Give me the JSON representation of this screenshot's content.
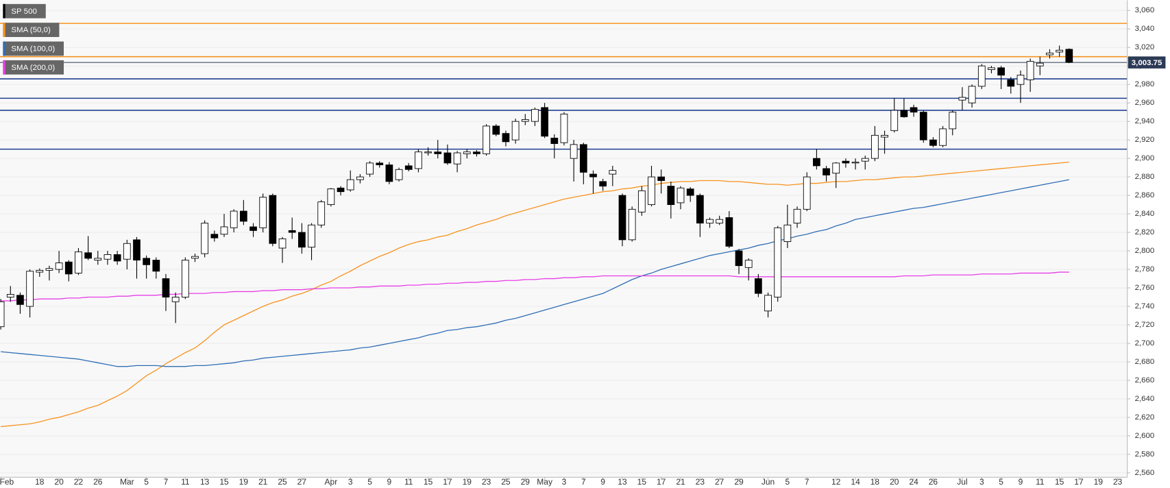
{
  "chart_data": {
    "type": "candlestick",
    "name": "SP 500",
    "categories": [
      "Feb",
      null,
      null,
      null,
      "18",
      null,
      "20",
      null,
      "22",
      null,
      "26",
      null,
      null,
      "Mar",
      null,
      "5",
      null,
      "7",
      null,
      "11",
      null,
      "13",
      null,
      "15",
      null,
      "19",
      null,
      "21",
      null,
      "25",
      null,
      "27",
      null,
      null,
      "Apr",
      null,
      "3",
      null,
      "5",
      null,
      "9",
      null,
      "11",
      null,
      "15",
      null,
      "17",
      null,
      "19",
      null,
      "23",
      null,
      "25",
      null,
      "29",
      null,
      "May",
      null,
      "3",
      null,
      "7",
      null,
      "9",
      null,
      "13",
      null,
      "15",
      null,
      "17",
      null,
      "21",
      null,
      "23",
      null,
      "27",
      null,
      "29",
      null,
      null,
      "Jun",
      null,
      "5",
      null,
      "7",
      null,
      null,
      "12",
      null,
      "14",
      null,
      "18",
      null,
      "20",
      null,
      "24",
      null,
      "26",
      null,
      null,
      "Jul",
      null,
      "3",
      null,
      "5",
      null,
      "9",
      null,
      "11",
      null,
      "15",
      null,
      "17",
      null,
      "19",
      null,
      "23"
    ],
    "open": [
      2718,
      2750,
      2752,
      2740,
      2777,
      2779,
      2780,
      2788,
      2776,
      2798,
      2790,
      2791,
      2796,
      2791,
      2812,
      2792,
      2790,
      2770,
      2745,
      2750,
      2792,
      2797,
      2818,
      2818,
      2825,
      2843,
      2826,
      2825,
      2860,
      2803,
      2822,
      2820,
      2804,
      2828,
      2850,
      2868,
      2866,
      2877,
      2883,
      2895,
      2893,
      2877,
      2892,
      2889,
      2906,
      2907,
      2906,
      2894,
      2905,
      2907,
      2905,
      2935,
      2927,
      2920,
      2940,
      2940,
      2955,
      2922,
      2917,
      2900,
      2915,
      2883,
      2875,
      2883,
      2860,
      2812,
      2842,
      2850,
      2880,
      2870,
      2852,
      2867,
      2860,
      2830,
      2830,
      2836,
      2800,
      2782,
      2770,
      2735,
      2750,
      2810,
      2830,
      2845,
      2900,
      2889,
      2884,
      2897,
      2895,
      2897,
      2900,
      2923,
      2930,
      2952,
      2955,
      2950,
      2920,
      2914,
      2932,
      2963,
      2960,
      2978,
      2996,
      2998,
      2985,
      2980,
      2985,
      3000,
      3012,
      3015,
      3018,
      null,
      null,
      null,
      null,
      null
    ],
    "high": [
      2748,
      2762,
      2755,
      2780,
      2781,
      2784,
      2800,
      2790,
      2803,
      2816,
      2800,
      2800,
      2800,
      2812,
      2815,
      2795,
      2793,
      2775,
      2755,
      2793,
      2797,
      2833,
      2822,
      2840,
      2845,
      2855,
      2830,
      2862,
      2862,
      2815,
      2836,
      2830,
      2830,
      2855,
      2868,
      2870,
      2887,
      2883,
      2897,
      2897,
      2896,
      2890,
      2895,
      2910,
      2912,
      2920,
      2915,
      2908,
      2910,
      2909,
      2937,
      2937,
      2930,
      2943,
      2948,
      2955,
      2960,
      2926,
      2950,
      2920,
      2917,
      2887,
      2878,
      2892,
      2862,
      2848,
      2870,
      2892,
      2888,
      2875,
      2870,
      2869,
      2862,
      2836,
      2838,
      2843,
      2802,
      2792,
      2775,
      2755,
      2827,
      2850,
      2848,
      2885,
      2910,
      2892,
      2896,
      2900,
      2900,
      2903,
      2935,
      2930,
      2965,
      2965,
      2958,
      2952,
      2923,
      2935,
      2952,
      2977,
      2980,
      3002,
      3000,
      3000,
      2988,
      2995,
      3008,
      3010,
      3018,
      3022,
      3019,
      null,
      null,
      null,
      null,
      null
    ],
    "low": [
      2715,
      2745,
      2732,
      2728,
      2772,
      2768,
      2776,
      2767,
      2774,
      2790,
      2785,
      2785,
      2785,
      2780,
      2770,
      2770,
      2770,
      2735,
      2722,
      2748,
      2788,
      2793,
      2810,
      2815,
      2820,
      2828,
      2815,
      2820,
      2805,
      2787,
      2813,
      2797,
      2790,
      2825,
      2848,
      2860,
      2864,
      2873,
      2880,
      2890,
      2872,
      2875,
      2886,
      2885,
      2903,
      2900,
      2893,
      2885,
      2900,
      2902,
      2903,
      2924,
      2913,
      2916,
      2936,
      2935,
      2922,
      2900,
      2914,
      2875,
      2872,
      2862,
      2865,
      2870,
      2805,
      2810,
      2838,
      2848,
      2862,
      2835,
      2845,
      2853,
      2815,
      2825,
      2828,
      2803,
      2775,
      2768,
      2750,
      2728,
      2745,
      2803,
      2825,
      2843,
      2888,
      2875,
      2868,
      2890,
      2888,
      2888,
      2897,
      2905,
      2928,
      2944,
      2945,
      2917,
      2912,
      2912,
      2925,
      2952,
      2955,
      2975,
      2992,
      2975,
      2970,
      2960,
      2972,
      2990,
      3008,
      3010,
      3003,
      null,
      null,
      null,
      null,
      null
    ],
    "close": [
      2745,
      2753,
      2742,
      2778,
      2779,
      2781,
      2787,
      2775,
      2799,
      2792,
      2792,
      2796,
      2789,
      2808,
      2790,
      2785,
      2778,
      2750,
      2750,
      2790,
      2794,
      2830,
      2814,
      2826,
      2843,
      2832,
      2822,
      2858,
      2808,
      2813,
      2820,
      2804,
      2828,
      2853,
      2867,
      2864,
      2877,
      2880,
      2895,
      2893,
      2875,
      2888,
      2888,
      2907,
      2907,
      2905,
      2895,
      2906,
      2907,
      2905,
      2935,
      2926,
      2918,
      2940,
      2942,
      2953,
      2924,
      2916,
      2948,
      2915,
      2885,
      2880,
      2870,
      2887,
      2812,
      2845,
      2865,
      2880,
      2876,
      2850,
      2868,
      2860,
      2830,
      2834,
      2834,
      2805,
      2784,
      2790,
      2754,
      2752,
      2825,
      2828,
      2845,
      2880,
      2892,
      2882,
      2895,
      2895,
      2896,
      2900,
      2925,
      2925,
      2952,
      2945,
      2950,
      2920,
      2914,
      2932,
      2950,
      2966,
      2978,
      3000,
      2998,
      2990,
      2978,
      2990,
      3005,
      3003,
      3014,
      3017,
      3003.75,
      null,
      null,
      null,
      null,
      null
    ],
    "series": [
      {
        "name": "SMA (50,0)",
        "color": "#f7931e",
        "values": [
          2610,
          2611,
          2612,
          2613,
          2615,
          2618,
          2620,
          2623,
          2626,
          2630,
          2633,
          2638,
          2643,
          2649,
          2657,
          2665,
          2671,
          2678,
          2684,
          2690,
          2695,
          2703,
          2712,
          2720,
          2725,
          2730,
          2735,
          2740,
          2744,
          2747,
          2751,
          2754,
          2758,
          2763,
          2767,
          2773,
          2778,
          2784,
          2789,
          2794,
          2798,
          2803,
          2807,
          2810,
          2812,
          2815,
          2817,
          2821,
          2824,
          2828,
          2831,
          2834,
          2838,
          2841,
          2844,
          2847,
          2850,
          2853,
          2856,
          2858,
          2860,
          2862,
          2864,
          2865,
          2867,
          2868,
          2870,
          2871,
          2873,
          2874,
          2875,
          2875,
          2876,
          2876,
          2876,
          2875,
          2875,
          2874,
          2873,
          2872,
          2872,
          2871,
          2872,
          2873,
          2873,
          2874,
          2875,
          2875,
          2876,
          2877,
          2877,
          2878,
          2879,
          2880,
          2880,
          2881,
          2882,
          2883,
          2884,
          2885,
          2886,
          2887,
          2888,
          2889,
          2890,
          2891,
          2892,
          2893,
          2894,
          2895,
          2896,
          null,
          null,
          null,
          null,
          null
        ]
      },
      {
        "name": "SMA (100,0)",
        "color": "#2f6db5",
        "values": [
          2691,
          2690,
          2689,
          2688,
          2687,
          2686,
          2685,
          2684,
          2683,
          2681,
          2679,
          2677,
          2675,
          2675,
          2676,
          2676,
          2676,
          2675,
          2675,
          2675,
          2676,
          2676,
          2677,
          2678,
          2679,
          2681,
          2682,
          2684,
          2685,
          2686,
          2687,
          2688,
          2689,
          2690,
          2691,
          2692,
          2693,
          2695,
          2696,
          2698,
          2700,
          2702,
          2704,
          2706,
          2709,
          2711,
          2714,
          2715,
          2717,
          2718,
          2720,
          2722,
          2725,
          2727,
          2730,
          2733,
          2736,
          2739,
          2742,
          2745,
          2748,
          2751,
          2754,
          2759,
          2764,
          2769,
          2773,
          2776,
          2780,
          2783,
          2786,
          2789,
          2792,
          2795,
          2797,
          2799,
          2801,
          2803,
          2806,
          2808,
          2811,
          2813,
          2816,
          2818,
          2821,
          2823,
          2827,
          2830,
          2834,
          2836,
          2838,
          2840,
          2842,
          2844,
          2846,
          2847,
          2849,
          2851,
          2853,
          2855,
          2857,
          2859,
          2861,
          2863,
          2865,
          2867,
          2869,
          2871,
          2873,
          2875,
          2877,
          null,
          null,
          null,
          null,
          null
        ]
      },
      {
        "name": "SMA (200,0)",
        "color": "#e83ee8",
        "values": [
          2746,
          2746,
          2747,
          2747,
          2748,
          2748,
          2748,
          2749,
          2749,
          2750,
          2750,
          2750,
          2751,
          2751,
          2752,
          2752,
          2752,
          2753,
          2753,
          2754,
          2754,
          2754,
          2755,
          2755,
          2756,
          2756,
          2756,
          2757,
          2757,
          2758,
          2758,
          2758,
          2759,
          2759,
          2760,
          2760,
          2760,
          2761,
          2761,
          2762,
          2762,
          2762,
          2763,
          2763,
          2764,
          2764,
          2765,
          2765,
          2766,
          2766,
          2767,
          2767,
          2768,
          2768,
          2769,
          2769,
          2770,
          2770,
          2771,
          2771,
          2772,
          2772,
          2773,
          2773,
          2773,
          2773,
          2773,
          2773,
          2773,
          2773,
          2773,
          2773,
          2773,
          2773,
          2773,
          2773,
          2772,
          2772,
          2772,
          2772,
          2772,
          2772,
          2772,
          2772,
          2772,
          2772,
          2772,
          2772,
          2772,
          2772,
          2772,
          2772,
          2772,
          2773,
          2773,
          2773,
          2774,
          2774,
          2774,
          2774,
          2774,
          2775,
          2775,
          2775,
          2775,
          2776,
          2776,
          2776,
          2776,
          2777,
          2777,
          null,
          null,
          null,
          null,
          null
        ]
      }
    ],
    "levels": [
      {
        "value": 3046,
        "color": "#f7931e"
      },
      {
        "value": 3010,
        "color": "#f7931e"
      },
      {
        "value": 2986,
        "color": "#1f3f8f"
      },
      {
        "value": 2965,
        "color": "#1f3f8f"
      },
      {
        "value": 2952,
        "color": "#1f3f8f"
      },
      {
        "value": 2910,
        "color": "#1f3f8f"
      }
    ],
    "last_price": {
      "value": 3003.75,
      "label": "3,003.75"
    },
    "ylim": [
      2552,
      3071
    ],
    "yticks": [
      {
        "value": 2560,
        "label": "2,560"
      },
      {
        "value": 2580,
        "label": "2,580"
      },
      {
        "value": 2600,
        "label": "2,600"
      },
      {
        "value": 2620,
        "label": "2,620"
      },
      {
        "value": 2640,
        "label": "2,640"
      },
      {
        "value": 2660,
        "label": "2,660"
      },
      {
        "value": 2680,
        "label": "2,680"
      },
      {
        "value": 2700,
        "label": "2,700"
      },
      {
        "value": 2720,
        "label": "2,720"
      },
      {
        "value": 2740,
        "label": "2,740"
      },
      {
        "value": 2760,
        "label": "2,760"
      },
      {
        "value": 2780,
        "label": "2,780"
      },
      {
        "value": 2800,
        "label": "2,800"
      },
      {
        "value": 2820,
        "label": "2,820"
      },
      {
        "value": 2840,
        "label": "2,840"
      },
      {
        "value": 2860,
        "label": "2,860"
      },
      {
        "value": 2880,
        "label": "2,880"
      },
      {
        "value": 2900,
        "label": "2,900"
      },
      {
        "value": 2920,
        "label": "2,920"
      },
      {
        "value": 2940,
        "label": "2,940"
      },
      {
        "value": 2960,
        "label": "2,960"
      },
      {
        "value": 2980,
        "label": "2,980"
      },
      {
        "value": 3000,
        "label": "3,000"
      },
      {
        "value": 3020,
        "label": "3,020"
      },
      {
        "value": 3040,
        "label": "3,040"
      },
      {
        "value": 3060,
        "label": "3,060"
      }
    ],
    "grid": true
  }
}
